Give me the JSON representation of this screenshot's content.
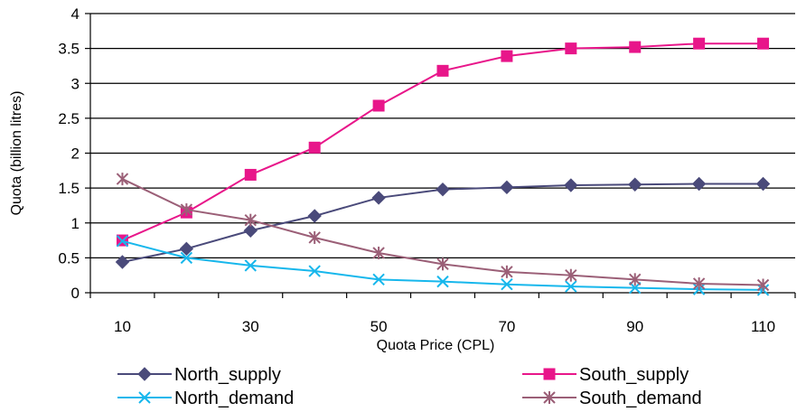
{
  "chart_data": {
    "type": "line",
    "xlabel": "Quota Price (CPL)",
    "ylabel": "Quota (billion litres)",
    "x": [
      10,
      20,
      30,
      40,
      50,
      60,
      70,
      80,
      90,
      100,
      110
    ],
    "x_tick_labels": [
      "10",
      "30",
      "50",
      "70",
      "90",
      "110"
    ],
    "y_tick_labels": [
      "0",
      "0.5",
      "1",
      "1.5",
      "2",
      "2.5",
      "3",
      "3.5",
      "4"
    ],
    "xlim": [
      5,
      115
    ],
    "ylim": [
      0,
      4
    ],
    "grid": "horizontal",
    "legend_position": "bottom",
    "series": [
      {
        "name": "North_supply",
        "color": "#4a4a7a",
        "marker": "diamond",
        "values": [
          0.44,
          0.63,
          0.89,
          1.1,
          1.36,
          1.48,
          1.51,
          1.54,
          1.55,
          1.56,
          1.56
        ]
      },
      {
        "name": "South_supply",
        "color": "#e8168a",
        "marker": "square",
        "values": [
          0.75,
          1.15,
          1.69,
          2.08,
          2.68,
          3.18,
          3.39,
          3.5,
          3.52,
          3.57,
          3.57
        ]
      },
      {
        "name": "North_demand",
        "color": "#17b7ec",
        "marker": "x",
        "values": [
          0.74,
          0.5,
          0.39,
          0.31,
          0.19,
          0.16,
          0.12,
          0.09,
          0.07,
          0.05,
          0.04
        ]
      },
      {
        "name": "South_demand",
        "color": "#9b5f77",
        "marker": "asterisk",
        "values": [
          1.63,
          1.19,
          1.04,
          0.79,
          0.57,
          0.41,
          0.3,
          0.25,
          0.19,
          0.13,
          0.11
        ]
      }
    ]
  }
}
